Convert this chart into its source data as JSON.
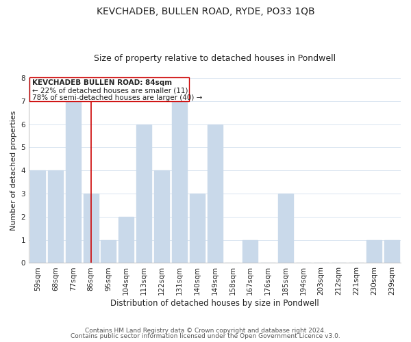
{
  "title": "KEVCHADEB, BULLEN ROAD, RYDE, PO33 1QB",
  "subtitle": "Size of property relative to detached houses in Pondwell",
  "xlabel": "Distribution of detached houses by size in Pondwell",
  "ylabel": "Number of detached properties",
  "bar_labels": [
    "59sqm",
    "68sqm",
    "77sqm",
    "86sqm",
    "95sqm",
    "104sqm",
    "113sqm",
    "122sqm",
    "131sqm",
    "140sqm",
    "149sqm",
    "158sqm",
    "167sqm",
    "176sqm",
    "185sqm",
    "194sqm",
    "203sqm",
    "212sqm",
    "221sqm",
    "230sqm",
    "239sqm"
  ],
  "bar_values": [
    4,
    4,
    7,
    3,
    1,
    2,
    6,
    4,
    7,
    3,
    6,
    0,
    1,
    0,
    3,
    0,
    0,
    0,
    0,
    1,
    1
  ],
  "bar_color": "#c9d9ea",
  "marker_line_color": "#cc0000",
  "marker_bar_index": 3,
  "ylim": [
    0,
    8
  ],
  "yticks": [
    0,
    1,
    2,
    3,
    4,
    5,
    6,
    7,
    8
  ],
  "annotation_title": "KEVCHADEB BULLEN ROAD: 84sqm",
  "annotation_line1": "← 22% of detached houses are smaller (11)",
  "annotation_line2": "78% of semi-detached houses are larger (40) →",
  "footer_line1": "Contains HM Land Registry data © Crown copyright and database right 2024.",
  "footer_line2": "Contains public sector information licensed under the Open Government Licence v3.0.",
  "title_fontsize": 10,
  "subtitle_fontsize": 9,
  "xlabel_fontsize": 8.5,
  "ylabel_fontsize": 8,
  "tick_fontsize": 7.5,
  "annotation_fontsize": 7.5,
  "footer_fontsize": 6.5,
  "background_color": "#ffffff",
  "grid_color": "#d8e4f0",
  "spine_color": "#bbbbbb",
  "text_color": "#222222",
  "footer_color": "#555555"
}
